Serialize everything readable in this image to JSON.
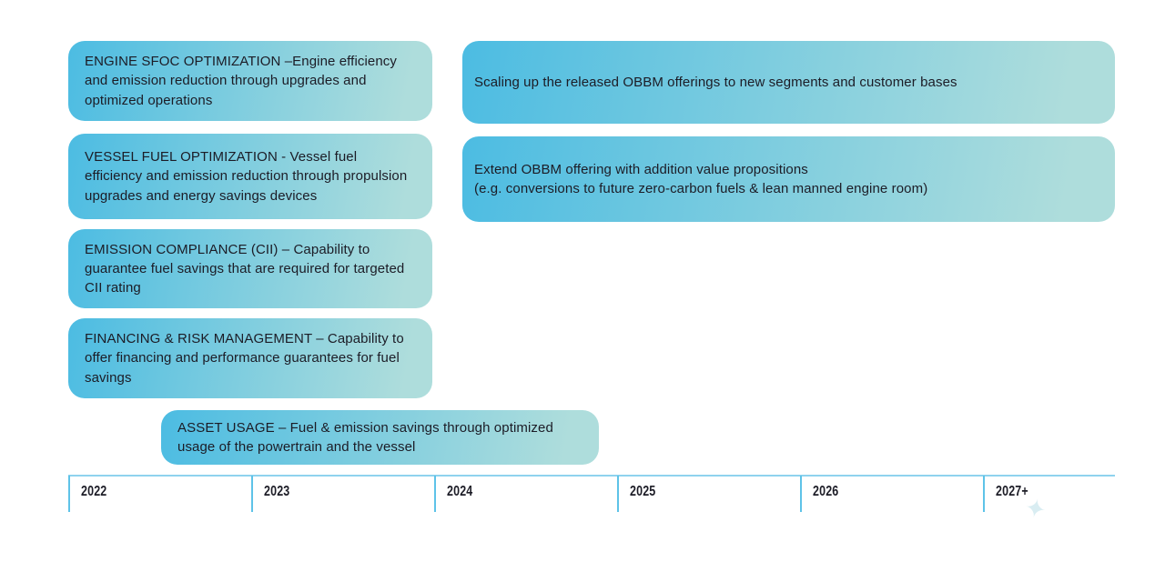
{
  "boxes": {
    "engine_sfoc": "ENGINE SFOC OPTIMIZATION –Engine efficiency and emission reduction through upgrades and optimized operations",
    "vessel_fuel": "VESSEL FUEL OPTIMIZATION - Vessel fuel efficiency and emission reduction through propulsion upgrades and energy savings devices",
    "emission_compliance": "EMISSION COMPLIANCE (CII) – Capability to guarantee fuel savings that are required for targeted CII rating",
    "financing_risk": "FINANCING & RISK MANAGEMENT – Capability to offer financing and performance guarantees for fuel savings",
    "asset_usage": "ASSET USAGE – Fuel & emission savings through optimized usage of the powertrain and the vessel",
    "scaling_up": "Scaling up the released OBBM offerings to new segments and customer bases",
    "extend_obbm_line1": "Extend OBBM offering with addition value propositions",
    "extend_obbm_line2": "(e.g. conversions to future zero-carbon fuels & lean manned engine room)"
  },
  "timeline": {
    "years": [
      "2022",
      "2023",
      "2024",
      "2025",
      "2026",
      "2027+"
    ]
  },
  "icons": {
    "sparkle": "✦"
  },
  "colors": {
    "gradient_start": "#4cbce2",
    "gradient_end": "#aedddc",
    "timeline_line": "#5ec3e8",
    "timeline_top_line": "#8fd3ee",
    "text_color": "#1c1c26"
  }
}
